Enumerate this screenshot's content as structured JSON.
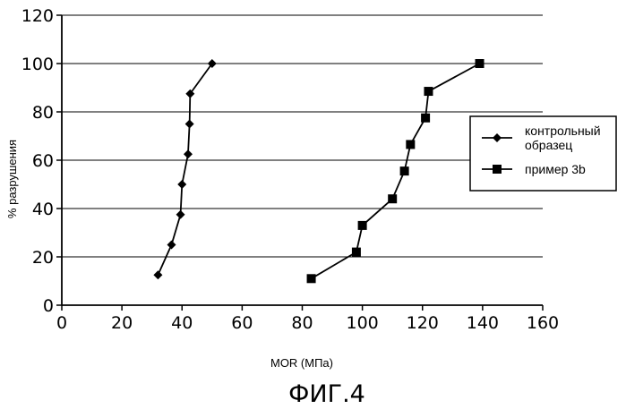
{
  "chart_data": {
    "type": "scatter",
    "xlabel": "MOR (МПа)",
    "ylabel": "% разрушения",
    "xlim": [
      0,
      160
    ],
    "ylim": [
      0,
      120
    ],
    "xticks": [
      0,
      20,
      40,
      60,
      80,
      100,
      120,
      140,
      160
    ],
    "yticks": [
      0,
      20,
      40,
      60,
      80,
      100,
      120
    ],
    "grid": "horizontal",
    "legend_position": "right",
    "series": [
      {
        "name": "контрольный образец",
        "marker": "diamond",
        "x": [
          32,
          36.5,
          39.5,
          40,
          42,
          42.5,
          42.7,
          50
        ],
        "y": [
          12.5,
          25,
          37.5,
          50,
          62.5,
          75,
          87.5,
          100
        ]
      },
      {
        "name": "пример 3b",
        "marker": "square",
        "x": [
          83,
          98,
          100,
          110,
          114,
          116,
          121,
          122,
          139
        ],
        "y": [
          11,
          22,
          33,
          44,
          55.5,
          66.5,
          77.5,
          88.5,
          100
        ]
      }
    ],
    "caption": "ФИГ.4"
  }
}
